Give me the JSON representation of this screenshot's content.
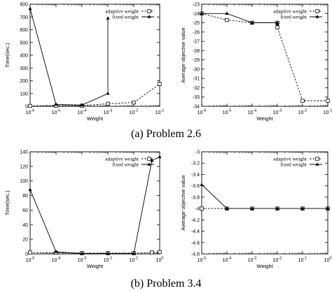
{
  "captions": [
    "(a) Problem 2.6",
    "(b) Problem 3.4"
  ],
  "chart_data": [
    {
      "type": "line",
      "xscale": "log",
      "xlim": [
        1e-06,
        0.1
      ],
      "xticks": [
        {
          "v": 1e-06,
          "b": "10",
          "e": "-6"
        },
        {
          "v": 1e-05,
          "b": "10",
          "e": "-5"
        },
        {
          "v": 0.0001,
          "b": "10",
          "e": "-4"
        },
        {
          "v": 0.001,
          "b": "10",
          "e": "-3"
        },
        {
          "v": 0.01,
          "b": "10",
          "e": "-2"
        },
        {
          "v": 0.1,
          "b": "10",
          "e": "-1"
        }
      ],
      "ylim": [
        0,
        800
      ],
      "yticks": [
        0,
        100,
        200,
        300,
        400,
        500,
        600,
        700,
        800
      ],
      "xlabel": "Weight",
      "ylabel": "Time(sec.)",
      "legend_position": "top-right",
      "series": [
        {
          "name": "adaptive weight",
          "style": "dashed",
          "marker": "square",
          "points": [
            [
              1e-06,
              3
            ],
            [
              1e-05,
              5
            ],
            [
              0.0001,
              5
            ],
            [
              0.001,
              20
            ],
            [
              0.01,
              30
            ],
            [
              0.1,
              175
            ]
          ]
        },
        {
          "name": "fixed weight",
          "style": "solid",
          "marker": "triangle",
          "points": [
            [
              1e-06,
              765
            ],
            [
              1e-05,
              15
            ],
            [
              0.0001,
              10
            ],
            [
              0.001,
              100
            ],
            [
              0.001,
              690
            ]
          ]
        }
      ]
    },
    {
      "type": "line",
      "xscale": "log",
      "xlim": [
        1e-06,
        0.1
      ],
      "xticks": [
        {
          "v": 1e-06,
          "b": "10",
          "e": "-6"
        },
        {
          "v": 1e-05,
          "b": "10",
          "e": "-5"
        },
        {
          "v": 0.0001,
          "b": "10",
          "e": "-4"
        },
        {
          "v": 0.001,
          "b": "10",
          "e": "-3"
        },
        {
          "v": 0.01,
          "b": "10",
          "e": "-2"
        },
        {
          "v": 0.1,
          "b": "10",
          "e": "-1"
        }
      ],
      "ylim": [
        -34,
        -23
      ],
      "yticks": [
        -23,
        -24,
        -25,
        -26,
        -27,
        -28,
        -29,
        -30,
        -31,
        -32,
        -33,
        -34
      ],
      "xlabel": "Weight",
      "ylabel": "Average objective value",
      "legend_position": "top-right",
      "series": [
        {
          "name": "adaptive weight",
          "style": "dashed",
          "marker": "square",
          "points": [
            [
              1e-06,
              -24
            ],
            [
              1e-05,
              -24.7
            ],
            [
              0.0001,
              -25
            ],
            [
              0.001,
              -25
            ],
            [
              0.001,
              -25.5
            ],
            [
              0.01,
              -33.4
            ],
            [
              0.1,
              -33.4
            ]
          ]
        },
        {
          "name": "fixed weight",
          "style": "solid",
          "marker": "triangle",
          "points": [
            [
              1e-06,
              -24
            ],
            [
              1e-05,
              -24
            ],
            [
              0.0001,
              -25
            ],
            [
              0.001,
              -25
            ],
            [
              0.001,
              -25.2
            ]
          ]
        }
      ]
    },
    {
      "type": "line",
      "xscale": "log",
      "xlim": [
        1e-05,
        1
      ],
      "xticks": [
        {
          "v": 1e-05,
          "b": "10",
          "e": "-5"
        },
        {
          "v": 0.0001,
          "b": "10",
          "e": "-4"
        },
        {
          "v": 0.001,
          "b": "10",
          "e": "-3"
        },
        {
          "v": 0.01,
          "b": "10",
          "e": "-2"
        },
        {
          "v": 0.1,
          "b": "10",
          "e": "-1"
        },
        {
          "v": 1,
          "b": "10",
          "e": "0"
        }
      ],
      "ylim": [
        0,
        140
      ],
      "yticks": [
        0,
        20,
        40,
        60,
        80,
        100,
        120,
        140
      ],
      "xlabel": "Weight",
      "ylabel": "Time(sec.)",
      "legend_position": "top-right",
      "series": [
        {
          "name": "adaptive weight",
          "style": "dashed",
          "marker": "square",
          "points": [
            [
              1e-05,
              2
            ],
            [
              0.0001,
              1.5
            ],
            [
              0.001,
              1
            ],
            [
              0.01,
              1
            ],
            [
              0.1,
              1
            ],
            [
              0.5,
              2
            ],
            [
              1,
              2.5
            ]
          ]
        },
        {
          "name": "fixed weight",
          "style": "solid",
          "marker": "triangle",
          "points": [
            [
              1e-05,
              88
            ],
            [
              0.0001,
              3
            ],
            [
              0.001,
              0.5
            ],
            [
              0.01,
              0.5
            ],
            [
              0.1,
              0.5
            ],
            [
              0.5,
              128
            ],
            [
              1,
              133
            ]
          ]
        }
      ]
    },
    {
      "type": "line",
      "xscale": "log",
      "xlim": [
        1e-05,
        1
      ],
      "xticks": [
        {
          "v": 1e-05,
          "b": "10",
          "e": "-5"
        },
        {
          "v": 0.0001,
          "b": "10",
          "e": "-4"
        },
        {
          "v": 0.001,
          "b": "10",
          "e": "-3"
        },
        {
          "v": 0.01,
          "b": "10",
          "e": "-2"
        },
        {
          "v": 0.1,
          "b": "10",
          "e": "-1"
        },
        {
          "v": 1,
          "b": "10",
          "e": "0"
        }
      ],
      "ylim": [
        -4.8,
        -3
      ],
      "yticks": [
        -3,
        -3.2,
        -3.4,
        -3.6,
        -3.8,
        -4,
        -4.2,
        -4.4,
        -4.6,
        -4.8
      ],
      "xlabel": "Weight",
      "ylabel": "Average objective value",
      "legend_position": "top-right",
      "series": [
        {
          "name": "adaptive weight",
          "style": "dashed",
          "marker": "square",
          "points": [
            [
              1e-05,
              -4
            ],
            [
              0.0001,
              -4
            ],
            [
              0.001,
              -4
            ],
            [
              0.01,
              -4
            ],
            [
              0.1,
              -4
            ],
            [
              1,
              -4
            ]
          ]
        },
        {
          "name": "fixed weight",
          "style": "solid",
          "marker": "triangle",
          "points": [
            [
              1e-05,
              -3.58
            ],
            [
              0.0001,
              -4
            ],
            [
              0.001,
              -4
            ],
            [
              0.01,
              -4
            ],
            [
              0.1,
              -4
            ],
            [
              1,
              -4
            ]
          ]
        }
      ]
    }
  ]
}
